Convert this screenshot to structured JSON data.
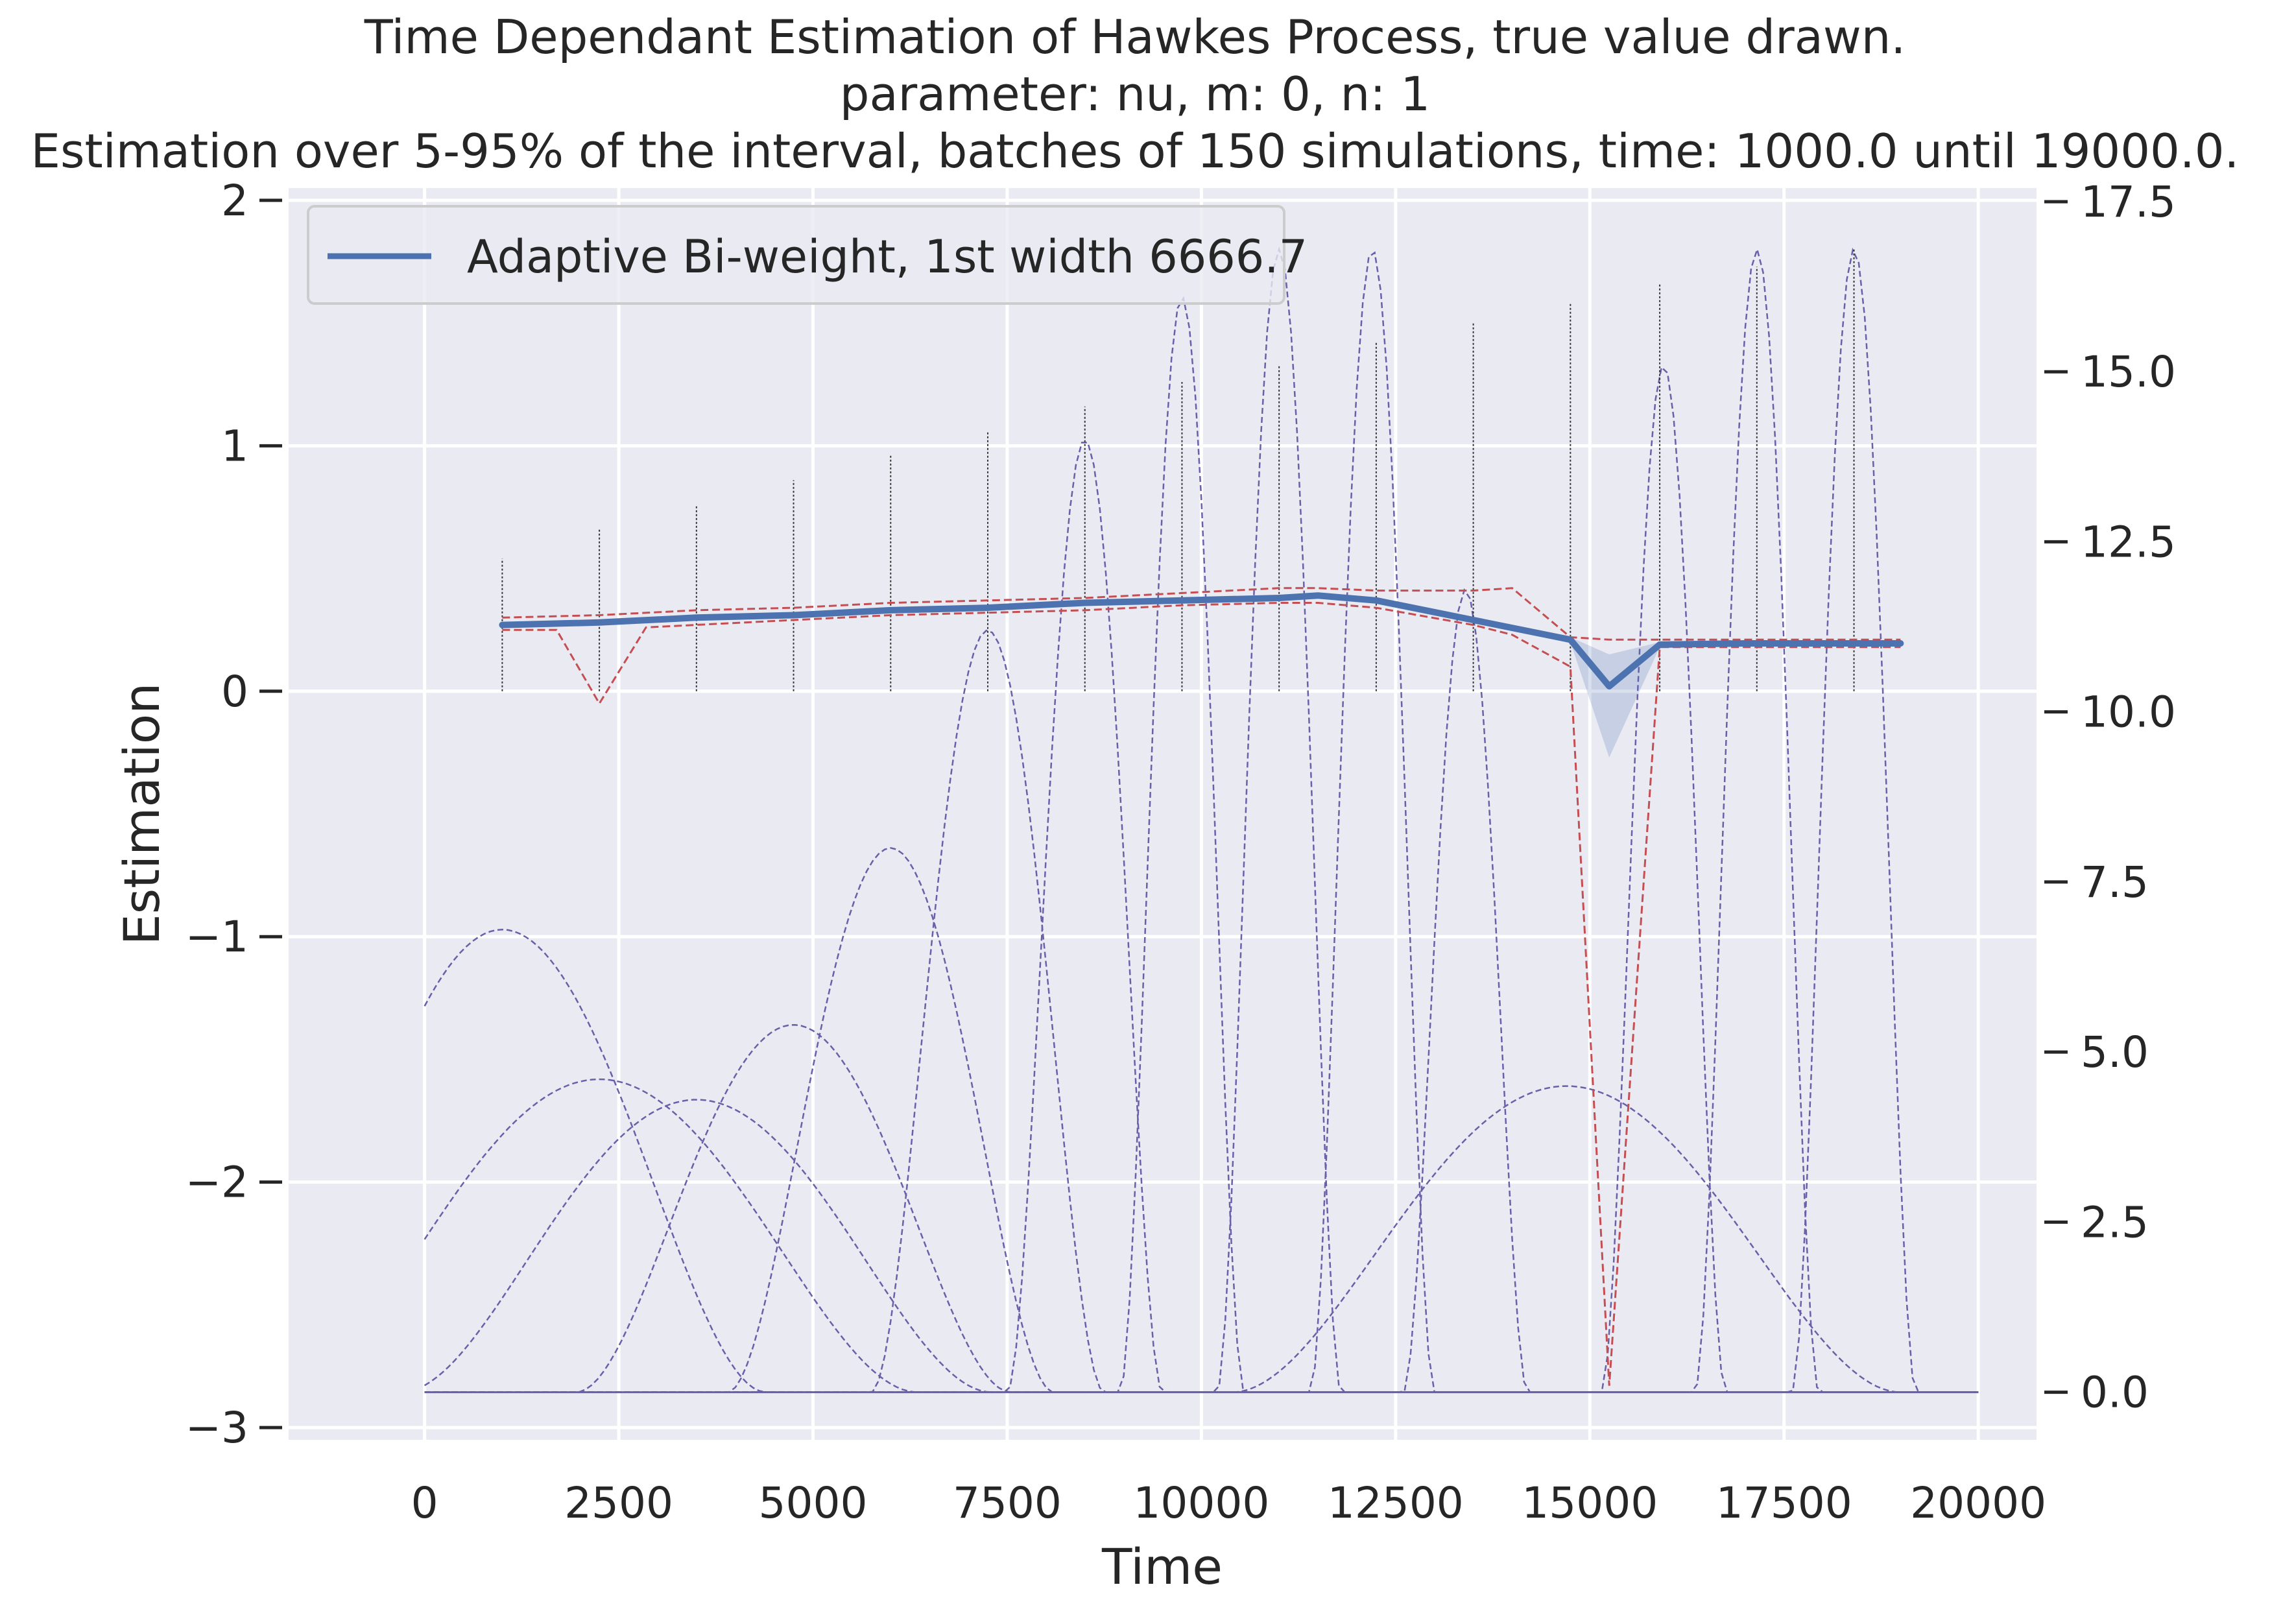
{
  "chart_data": {
    "type": "line",
    "title": "Time Dependant Estimation of Hawkes Process, true value drawn.",
    "subtitle": "parameter: nu, m: 0, n: 1",
    "subtitle2": "Estimation over 5-95% of the interval, batches of 150 simulations, time: 1000.0 until 19000.0.",
    "xlabel": "Time",
    "ylabel": "Estimation",
    "xlim": [
      -1750,
      20750
    ],
    "ylim": [
      -3.05,
      2.05
    ],
    "y2lim": [
      -0.7,
      17.7
    ],
    "xticks": [
      0,
      2500,
      5000,
      7500,
      10000,
      12500,
      15000,
      17500,
      20000
    ],
    "yticks": [
      -3,
      -2,
      -1,
      0,
      1,
      2
    ],
    "y2ticks": [
      0.0,
      2.5,
      5.0,
      7.5,
      10.0,
      12.5,
      15.0,
      17.5
    ],
    "legend": {
      "position": "upper-left",
      "entries": [
        "Adaptive Bi-weight, 1st width 6666.7"
      ]
    },
    "grid": true,
    "colors": {
      "background": "#eaeaf2",
      "grid": "#ffffff",
      "main_line": "#4c72b0",
      "band": "#4c72b0",
      "quantile": "#c44e52",
      "kernel": "#6a5fa8",
      "vline": "#333333"
    },
    "series": [
      {
        "name": "Adaptive Bi-weight, 1st width 6666.7",
        "x": [
          1000,
          2250,
          3500,
          4750,
          6000,
          7250,
          8500,
          9750,
          11000,
          11500,
          12250,
          13500,
          14750,
          15250,
          15900,
          17000,
          18250,
          19000
        ],
        "y": [
          0.27,
          0.28,
          0.3,
          0.31,
          0.33,
          0.34,
          0.36,
          0.37,
          0.38,
          0.39,
          0.37,
          0.29,
          0.21,
          0.02,
          0.19,
          0.195,
          0.195,
          0.195
        ],
        "band_upper": [
          0.28,
          0.29,
          0.31,
          0.32,
          0.34,
          0.35,
          0.37,
          0.38,
          0.39,
          0.4,
          0.38,
          0.3,
          0.22,
          0.15,
          0.2,
          0.2,
          0.2,
          0.2
        ],
        "band_lower": [
          0.26,
          0.27,
          0.29,
          0.3,
          0.32,
          0.33,
          0.35,
          0.36,
          0.37,
          0.38,
          0.36,
          0.28,
          0.2,
          -0.27,
          0.18,
          0.19,
          0.19,
          0.19
        ]
      }
    ],
    "quantile_upper": {
      "x": [
        1000,
        2250,
        3500,
        4750,
        6000,
        7250,
        8500,
        9750,
        11000,
        11500,
        12250,
        13500,
        14000,
        14750,
        15250,
        15900,
        17000,
        19000
      ],
      "y": [
        0.3,
        0.31,
        0.33,
        0.34,
        0.36,
        0.37,
        0.38,
        0.4,
        0.42,
        0.42,
        0.41,
        0.41,
        0.42,
        0.22,
        0.21,
        0.21,
        0.21,
        0.21
      ]
    },
    "quantile_lower": {
      "x": [
        1000,
        1700,
        2250,
        2850,
        4750,
        6000,
        7250,
        8500,
        9750,
        11000,
        11500,
        12250,
        13500,
        14000,
        14750,
        15250,
        15900,
        17000,
        19000
      ],
      "y": [
        0.25,
        0.25,
        -0.05,
        0.26,
        0.29,
        0.31,
        0.32,
        0.33,
        0.35,
        0.36,
        0.36,
        0.34,
        0.27,
        0.23,
        0.1,
        -2.83,
        0.18,
        0.18,
        0.18
      ]
    },
    "true_value_lines": {
      "x": [
        1000,
        2250,
        3500,
        4750,
        6000,
        7250,
        8500,
        9750,
        11000,
        12250,
        13500,
        14750,
        15900,
        17150,
        18400
      ],
      "y_top": [
        0.54,
        0.66,
        0.76,
        0.86,
        0.96,
        1.06,
        1.16,
        1.26,
        1.33,
        1.42,
        1.5,
        1.58,
        1.66,
        1.73,
        1.8
      ]
    },
    "kernels": [
      {
        "center": 1000,
        "half_width": 3400,
        "peak": 6.8
      },
      {
        "center": 2250,
        "half_width": 4100,
        "peak": 4.6
      },
      {
        "center": 3500,
        "half_width": 3800,
        "peak": 4.3
      },
      {
        "center": 4750,
        "half_width": 2800,
        "peak": 5.4
      },
      {
        "center": 6000,
        "half_width": 2100,
        "peak": 8.0
      },
      {
        "center": 7250,
        "half_width": 1500,
        "peak": 11.2
      },
      {
        "center": 8500,
        "half_width": 1000,
        "peak": 14.0
      },
      {
        "center": 9750,
        "half_width": 800,
        "peak": 16.1
      },
      {
        "center": 11000,
        "half_width": 800,
        "peak": 16.8
      },
      {
        "center": 12200,
        "half_width": 800,
        "peak": 16.8
      },
      {
        "center": 13400,
        "half_width": 800,
        "peak": 11.8
      },
      {
        "center": 14700,
        "half_width": 4300,
        "peak": 4.5
      },
      {
        "center": 15950,
        "half_width": 800,
        "peak": 15.1
      },
      {
        "center": 17150,
        "half_width": 800,
        "peak": 16.8
      },
      {
        "center": 18400,
        "half_width": 800,
        "peak": 16.8
      }
    ],
    "kernel_baseline": 0.0
  }
}
